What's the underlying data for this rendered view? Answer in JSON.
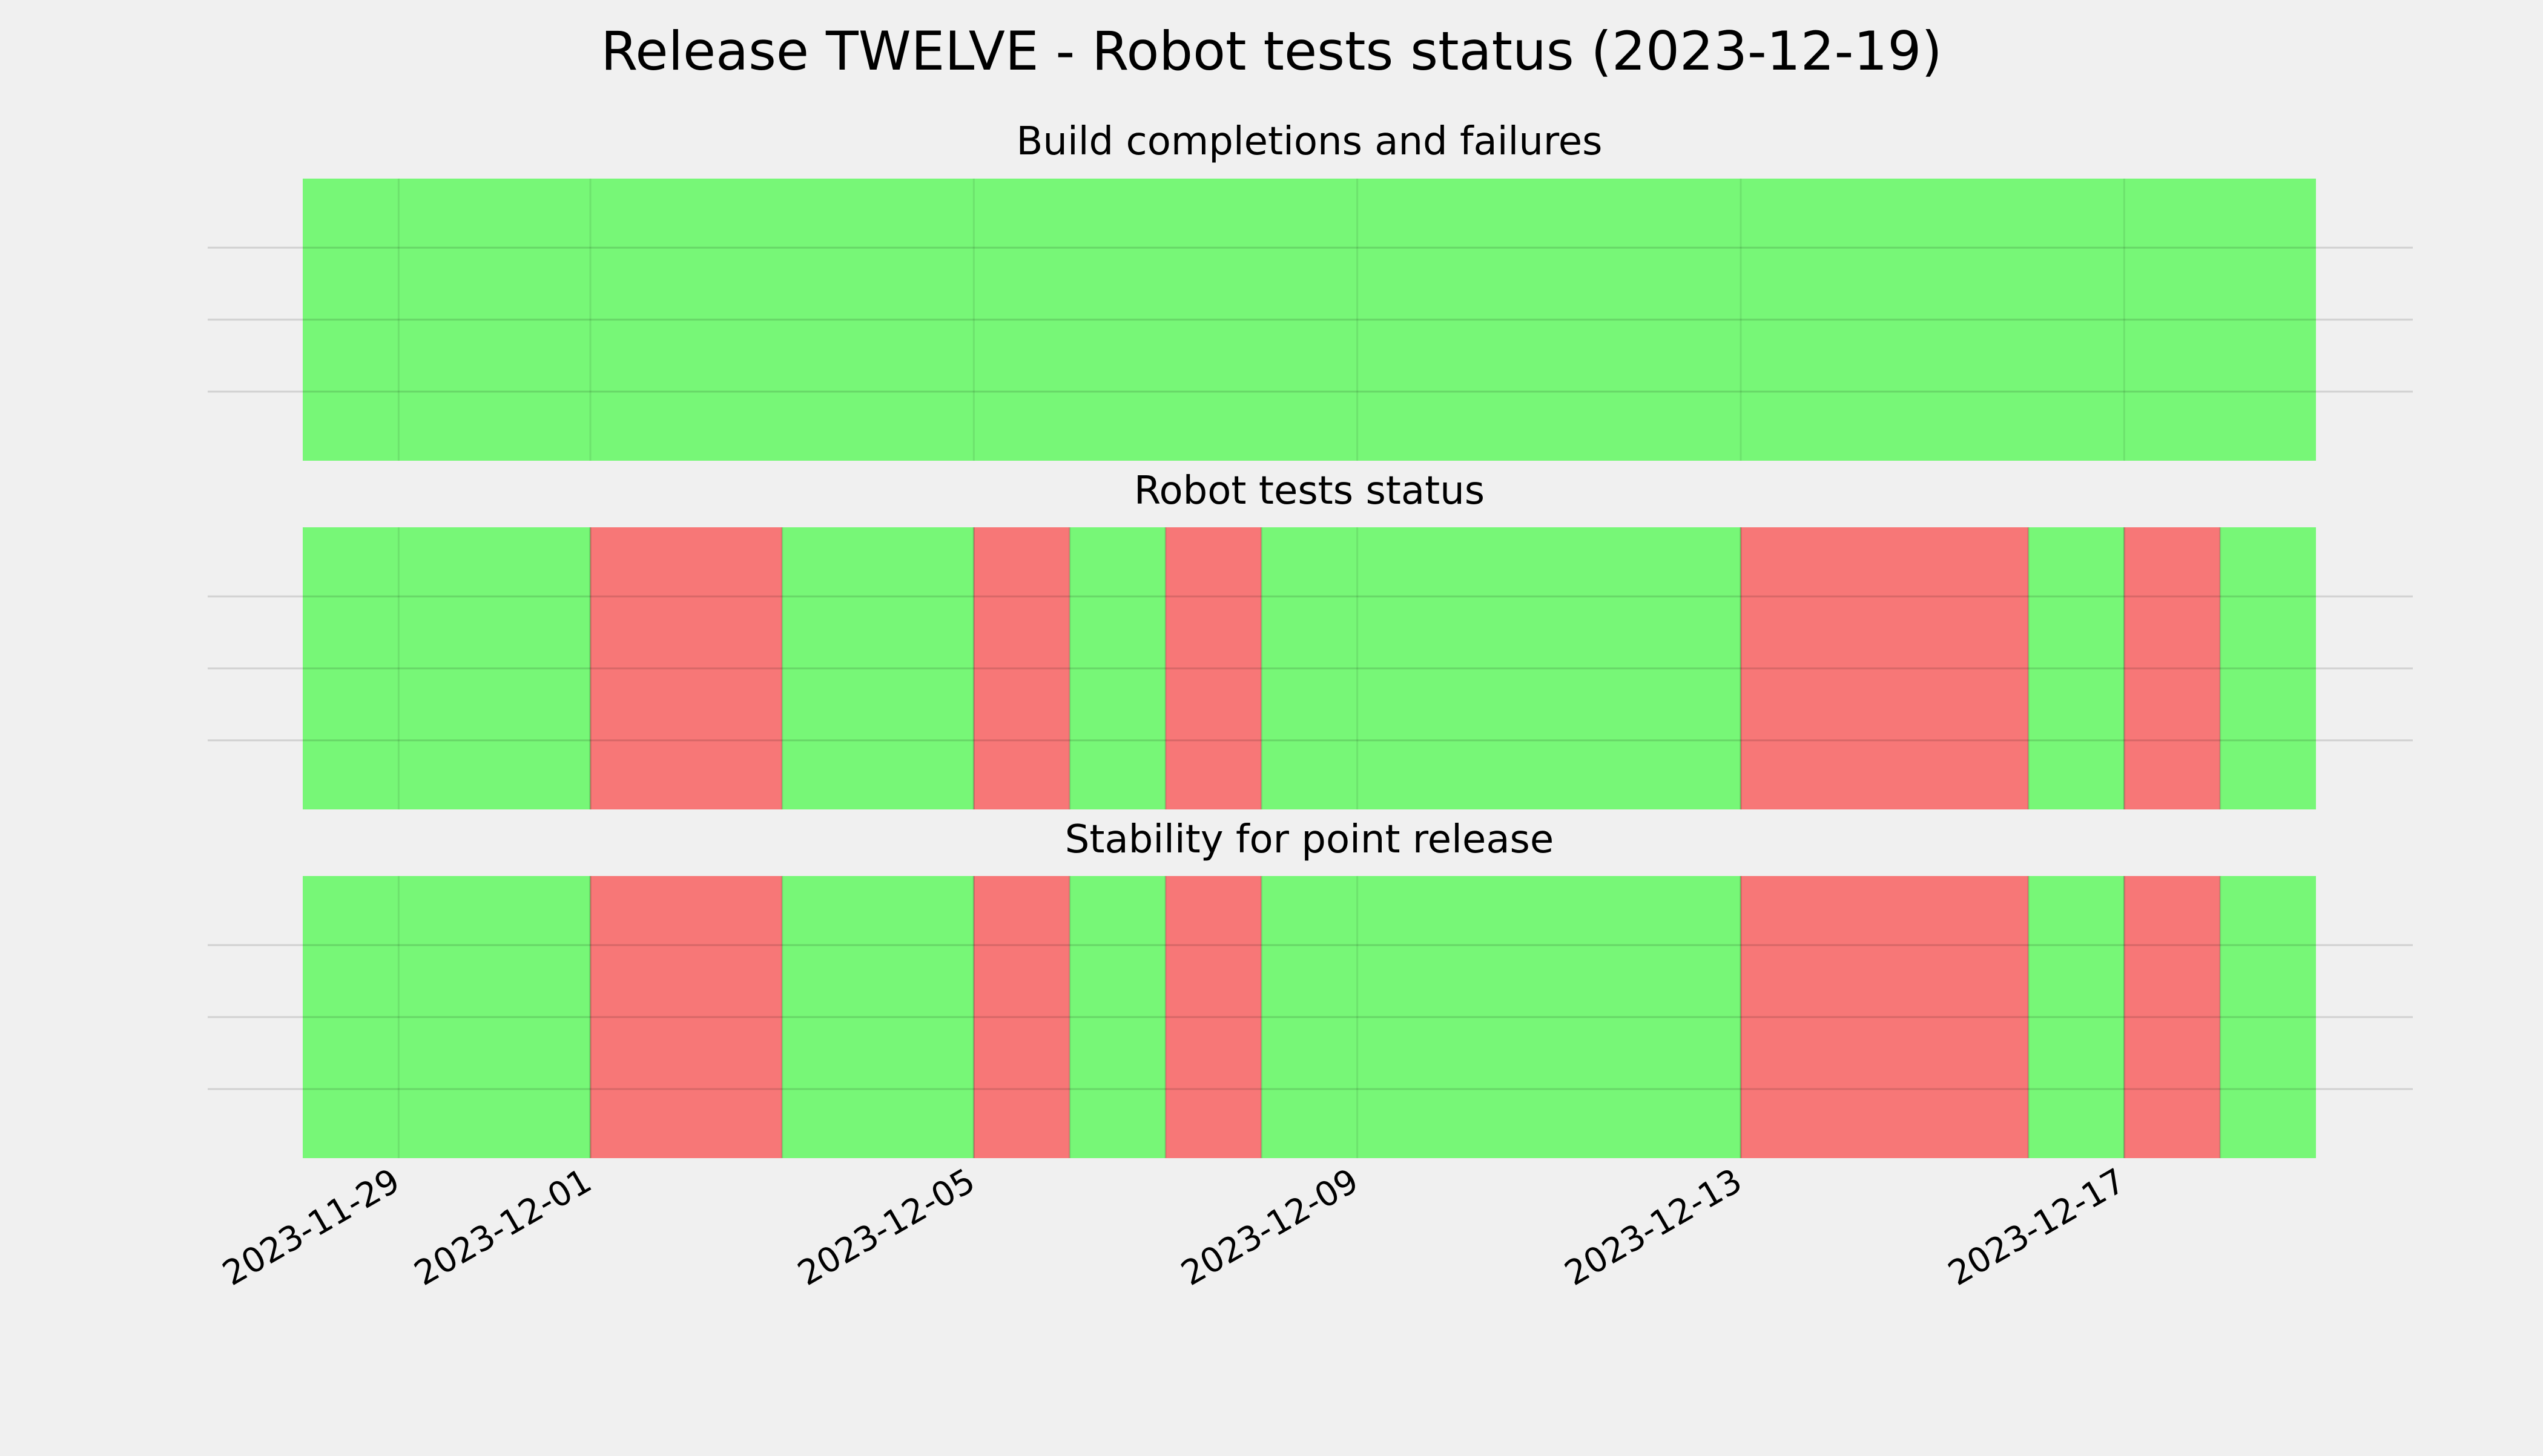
{
  "chart_data": {
    "type": "timeline",
    "title": "Release TWELVE - Robot tests status (2023-12-19)",
    "x_range": [
      "2023-11-28",
      "2023-12-19"
    ],
    "x_ticks": [
      "2023-11-29",
      "2023-12-01",
      "2023-12-05",
      "2023-12-09",
      "2023-12-13",
      "2023-12-17"
    ],
    "colors": {
      "pass": "#77f777",
      "fail": "#f77777"
    },
    "grid": true,
    "panels": [
      {
        "title": "Build completions and failures",
        "segments": [
          {
            "start": "2023-11-28",
            "end": "2023-12-19",
            "status": "pass"
          }
        ]
      },
      {
        "title": "Robot tests status",
        "segments": [
          {
            "start": "2023-11-28",
            "end": "2023-12-01",
            "status": "pass"
          },
          {
            "start": "2023-12-01",
            "end": "2023-12-03",
            "status": "fail"
          },
          {
            "start": "2023-12-03",
            "end": "2023-12-05",
            "status": "pass"
          },
          {
            "start": "2023-12-05",
            "end": "2023-12-06",
            "status": "fail"
          },
          {
            "start": "2023-12-06",
            "end": "2023-12-07",
            "status": "pass"
          },
          {
            "start": "2023-12-07",
            "end": "2023-12-08",
            "status": "fail"
          },
          {
            "start": "2023-12-08",
            "end": "2023-12-13",
            "status": "pass"
          },
          {
            "start": "2023-12-13",
            "end": "2023-12-16",
            "status": "fail"
          },
          {
            "start": "2023-12-16",
            "end": "2023-12-17",
            "status": "pass"
          },
          {
            "start": "2023-12-17",
            "end": "2023-12-18",
            "status": "fail"
          },
          {
            "start": "2023-12-18",
            "end": "2023-12-19",
            "status": "pass"
          }
        ]
      },
      {
        "title": "Stability for point release",
        "segments": [
          {
            "start": "2023-11-28",
            "end": "2023-12-01",
            "status": "pass"
          },
          {
            "start": "2023-12-01",
            "end": "2023-12-03",
            "status": "fail"
          },
          {
            "start": "2023-12-03",
            "end": "2023-12-05",
            "status": "pass"
          },
          {
            "start": "2023-12-05",
            "end": "2023-12-06",
            "status": "fail"
          },
          {
            "start": "2023-12-06",
            "end": "2023-12-07",
            "status": "pass"
          },
          {
            "start": "2023-12-07",
            "end": "2023-12-08",
            "status": "fail"
          },
          {
            "start": "2023-12-08",
            "end": "2023-12-13",
            "status": "pass"
          },
          {
            "start": "2023-12-13",
            "end": "2023-12-16",
            "status": "fail"
          },
          {
            "start": "2023-12-16",
            "end": "2023-12-17",
            "status": "pass"
          },
          {
            "start": "2023-12-17",
            "end": "2023-12-18",
            "status": "fail"
          },
          {
            "start": "2023-12-18",
            "end": "2023-12-19",
            "status": "pass"
          }
        ]
      }
    ]
  }
}
